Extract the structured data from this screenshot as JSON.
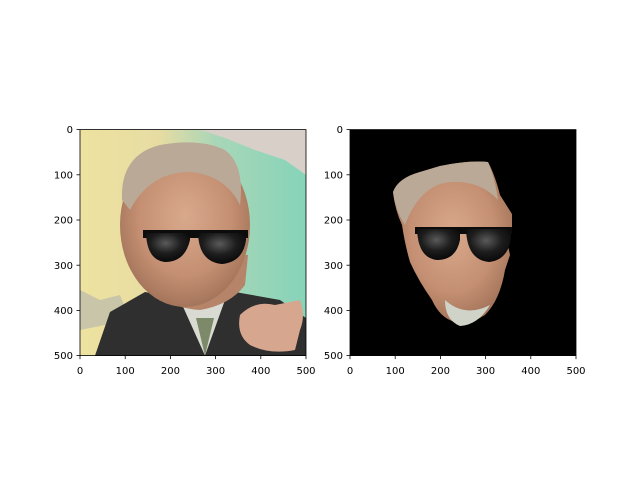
{
  "chart_data": [
    {
      "type": "image",
      "title": "",
      "xlabel": "",
      "ylabel": "",
      "xlim": [
        0,
        500
      ],
      "ylim": [
        500,
        0
      ],
      "xticks": [
        0,
        100,
        200,
        300,
        400,
        500
      ],
      "yticks": [
        0,
        100,
        200,
        300,
        400,
        500
      ],
      "xtick_labels": [
        "0",
        "100",
        "200",
        "300",
        "400",
        "500"
      ],
      "ytick_labels": [
        "0",
        "100",
        "200",
        "300",
        "400",
        "500"
      ],
      "grid": false,
      "image_content": "photo of a man's face with sunglasses overlay",
      "background": "original photo",
      "sunglasses_center": [
        280,
        240
      ]
    },
    {
      "type": "image",
      "title": "",
      "xlabel": "",
      "ylabel": "",
      "xlim": [
        0,
        500
      ],
      "ylim": [
        500,
        0
      ],
      "xticks": [
        0,
        100,
        200,
        300,
        400,
        500
      ],
      "yticks": [
        0,
        100,
        200,
        300,
        400,
        500
      ],
      "xtick_labels": [
        "0",
        "100",
        "200",
        "300",
        "400",
        "500"
      ],
      "ytick_labels": [
        "0",
        "100",
        "200",
        "300",
        "400",
        "500"
      ],
      "grid": false,
      "image_content": "segmented face on black background with sunglasses overlay",
      "background": "black",
      "sunglasses_center": [
        260,
        250
      ]
    }
  ]
}
